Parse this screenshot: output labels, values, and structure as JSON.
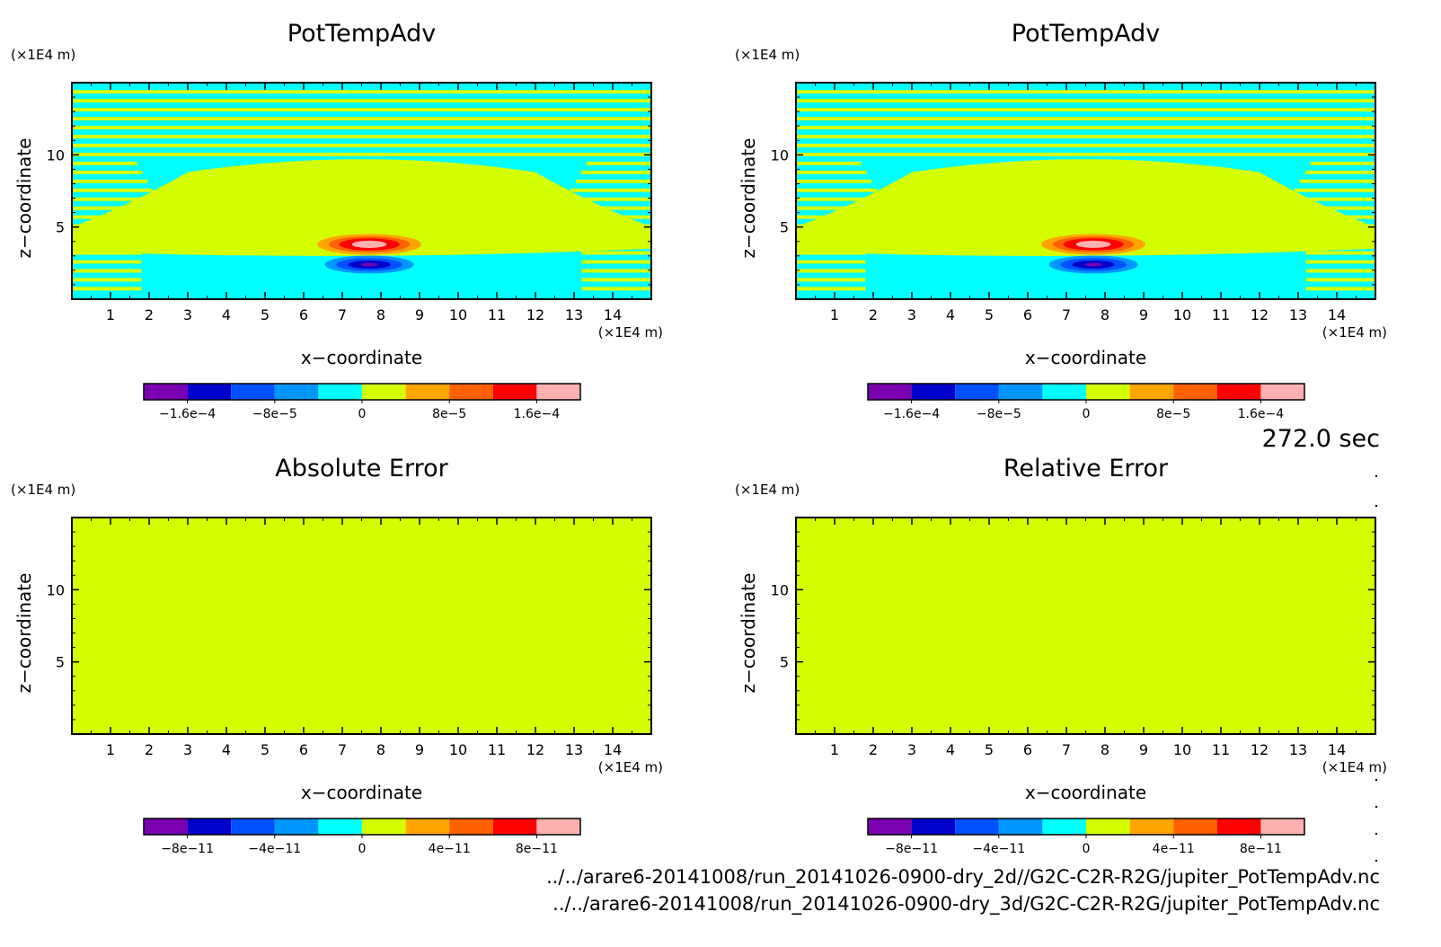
{
  "time_label": "272.0 sec",
  "files": [
    "../../arare6-20141008/run_20141026-0900-dry_2d//G2C-C2R-R2G/jupiter_PotTempAdv.nc",
    "../../arare6-20141008/run_20141026-0900-dry_3d/G2C-C2R-R2G/jupiter_PotTempAdv.nc"
  ],
  "colors": {
    "levels": [
      "#7a00b0",
      "#0000cc",
      "#0050ff",
      "#0096ff",
      "#00ffff",
      "#d4ff00",
      "#ffa500",
      "#ff6000",
      "#ff0000",
      "#ffb0b0"
    ],
    "background": "#d4ff00",
    "stripe": "#00ffff"
  },
  "chart_data": [
    {
      "type": "heatmap",
      "title": "PotTempAdv",
      "xlabel": "x−coordinate",
      "ylabel": "z−coordinate",
      "x_unit": "(×1E4 m)",
      "y_unit": "(×1E4 m)",
      "xlim": [
        0,
        15
      ],
      "ylim": [
        0,
        15
      ],
      "x_ticks": [
        "1",
        "2",
        "3",
        "4",
        "5",
        "6",
        "7",
        "8",
        "9",
        "10",
        "11",
        "12",
        "13",
        "14"
      ],
      "y_ticks": [
        "5",
        "10"
      ],
      "colorbar_labels": [
        "−1.6e−4",
        "−8e−5",
        "0",
        "8e−5",
        "1.6e−4"
      ],
      "positive_anomaly": {
        "x": 7.7,
        "z": 3.8,
        "peak": 0.00016
      },
      "negative_anomaly": {
        "x": 7.7,
        "z": 2.4,
        "peak": -0.00016
      }
    },
    {
      "type": "heatmap",
      "title": "PotTempAdv",
      "xlabel": "x−coordinate",
      "ylabel": "z−coordinate",
      "x_unit": "(×1E4 m)",
      "y_unit": "(×1E4 m)",
      "xlim": [
        0,
        15
      ],
      "ylim": [
        0,
        15
      ],
      "x_ticks": [
        "1",
        "2",
        "3",
        "4",
        "5",
        "6",
        "7",
        "8",
        "9",
        "10",
        "11",
        "12",
        "13",
        "14"
      ],
      "y_ticks": [
        "5",
        "10"
      ],
      "colorbar_labels": [
        "−1.6e−4",
        "−8e−5",
        "0",
        "8e−5",
        "1.6e−4"
      ],
      "positive_anomaly": {
        "x": 7.7,
        "z": 3.8,
        "peak": 0.00016
      },
      "negative_anomaly": {
        "x": 7.7,
        "z": 2.4,
        "peak": -0.00016
      }
    },
    {
      "type": "heatmap",
      "title": "Absolute Error",
      "xlabel": "x−coordinate",
      "ylabel": "z−coordinate",
      "x_unit": "(×1E4 m)",
      "y_unit": "(×1E4 m)",
      "xlim": [
        0,
        15
      ],
      "ylim": [
        0,
        15
      ],
      "x_ticks": [
        "1",
        "2",
        "3",
        "4",
        "5",
        "6",
        "7",
        "8",
        "9",
        "10",
        "11",
        "12",
        "13",
        "14"
      ],
      "y_ticks": [
        "5",
        "10"
      ],
      "colorbar_labels": [
        "−8e−11",
        "−4e−11",
        "0",
        "4e−11",
        "8e−11"
      ],
      "uniform_value": 0
    },
    {
      "type": "heatmap",
      "title": "Relative Error",
      "xlabel": "x−coordinate",
      "ylabel": "z−coordinate",
      "x_unit": "(×1E4 m)",
      "y_unit": "(×1E4 m)",
      "xlim": [
        0,
        15
      ],
      "ylim": [
        0,
        15
      ],
      "x_ticks": [
        "1",
        "2",
        "3",
        "4",
        "5",
        "6",
        "7",
        "8",
        "9",
        "10",
        "11",
        "12",
        "13",
        "14"
      ],
      "y_ticks": [
        "5",
        "10"
      ],
      "colorbar_labels": [
        "−8e−11",
        "−4e−11",
        "0",
        "4e−11",
        "8e−11"
      ],
      "uniform_value": 0
    }
  ]
}
